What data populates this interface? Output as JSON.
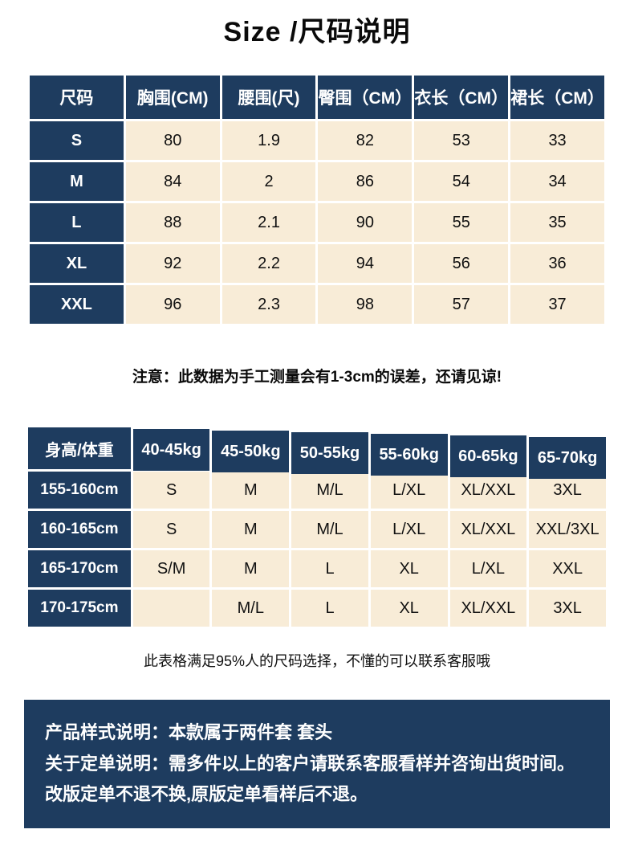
{
  "page": {
    "title": "Size /尺码说明"
  },
  "colors": {
    "navy": "#1e3c5f",
    "cream": "#f8ecd7"
  },
  "size_table": {
    "headers": [
      "尺码",
      "胸围(CM)",
      "腰围(尺)",
      "臀围（CM）",
      "衣长（CM）",
      "裙长（CM）"
    ],
    "rows": [
      [
        "S",
        "80",
        "1.9",
        "82",
        "53",
        "33"
      ],
      [
        "M",
        "84",
        "2",
        "86",
        "54",
        "34"
      ],
      [
        "L",
        "88",
        "2.1",
        "90",
        "55",
        "35"
      ],
      [
        "XL",
        "92",
        "2.2",
        "94",
        "56",
        "36"
      ],
      [
        "XXL",
        "96",
        "2.3",
        "98",
        "57",
        "37"
      ]
    ]
  },
  "size_note": "注意：此数据为手工测量会有1-3cm的误差，还请见谅!",
  "fit_table": {
    "headers": [
      "身高/体重",
      "40-45kg",
      "45-50kg",
      "50-55kg",
      "55-60kg",
      "60-65kg",
      "65-70kg"
    ],
    "rows": [
      [
        "155-160cm",
        "S",
        "M",
        "M/L",
        "L/XL",
        "XL/XXL",
        "3XL"
      ],
      [
        "160-165cm",
        "S",
        "M",
        "M/L",
        "L/XL",
        "XL/XXL",
        "XXL/3XL"
      ],
      [
        "165-170cm",
        "S/M",
        "M",
        "L",
        "XL",
        "L/XL",
        "XXL"
      ],
      [
        "170-175cm",
        "",
        "M/L",
        "L",
        "XL",
        "XL/XXL",
        "3XL"
      ]
    ]
  },
  "fit_note": "此表格满足95%人的尺码选择，不懂的可以联系客服哦",
  "info_box": {
    "line1_label": "产品样式说明：",
    "line1_text": "本款属于两件套 套头",
    "line2_label": "关于定单说明：",
    "line2_text": "需多件以上的客户请联系客服看样并咨询出货时间。改版定单不退不换,原版定单看样后不退。"
  }
}
